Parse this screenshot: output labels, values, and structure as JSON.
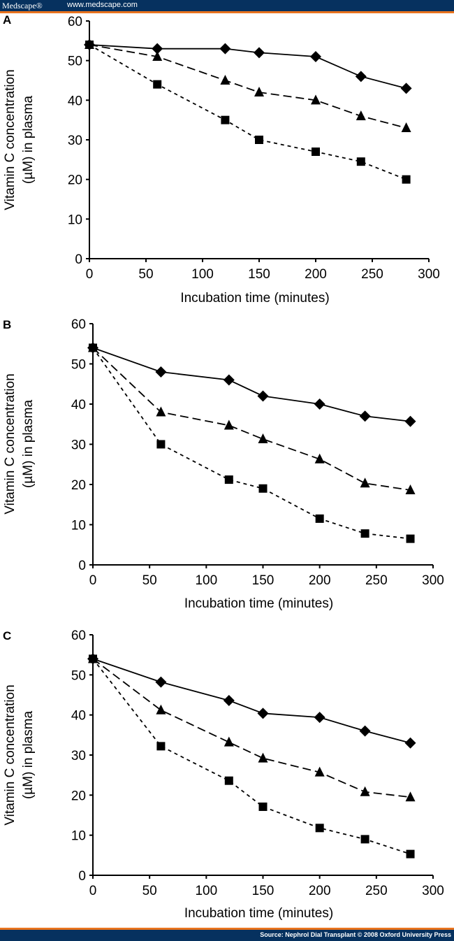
{
  "header": {
    "brand": "Medscape®",
    "url": "www.medscape.com"
  },
  "footer": {
    "source": "Source: Nephrol Dial Transplant © 2008 Oxford University Press"
  },
  "colors": {
    "header_bg": "#06315f",
    "accent": "#e8731e",
    "marks": "#000000"
  },
  "chart_data": [
    {
      "type": "line",
      "panel_label": "A",
      "xlabel": "Incubation time (minutes)",
      "ylabel": [
        "Vitamin C concentration",
        "(µM) in plasma"
      ],
      "xlim": [
        0,
        300
      ],
      "ylim": [
        0,
        60
      ],
      "xticks": [
        0,
        50,
        100,
        150,
        200,
        250,
        300
      ],
      "yticks": [
        0,
        10,
        20,
        30,
        40,
        50,
        60
      ],
      "grid": false,
      "x": [
        0,
        60,
        120,
        150,
        200,
        240,
        280
      ],
      "series": [
        {
          "marker": "diamond",
          "line": "solid",
          "values": [
            54,
            53,
            53,
            52,
            51,
            46,
            43
          ]
        },
        {
          "marker": "triangle",
          "line": "long-dash",
          "values": [
            54,
            51,
            45,
            42,
            40,
            36,
            33
          ]
        },
        {
          "marker": "square",
          "line": "short-dash",
          "values": [
            54,
            44,
            35,
            30,
            27,
            24.5,
            20
          ]
        }
      ]
    },
    {
      "type": "line",
      "panel_label": "B",
      "xlabel": "Incubation time (minutes)",
      "ylabel": [
        "Vitamin C concentration",
        "(µM) in plasma"
      ],
      "xlim": [
        0,
        300
      ],
      "ylim": [
        0,
        60
      ],
      "xticks": [
        0,
        50,
        100,
        150,
        200,
        250,
        300
      ],
      "yticks": [
        0,
        10,
        20,
        30,
        40,
        50,
        60
      ],
      "grid": false,
      "x": [
        0,
        60,
        120,
        150,
        200,
        240,
        280
      ],
      "series": [
        {
          "marker": "diamond",
          "line": "solid",
          "values": [
            54,
            48,
            46,
            42,
            40,
            37,
            35.7
          ]
        },
        {
          "marker": "triangle",
          "line": "long-dash",
          "values": [
            54,
            38,
            34.7,
            31.3,
            26.3,
            20.3,
            18.6
          ]
        },
        {
          "marker": "square",
          "line": "short-dash",
          "values": [
            54,
            30,
            21.2,
            19,
            11.5,
            7.8,
            6.5
          ]
        }
      ]
    },
    {
      "type": "line",
      "panel_label": "C",
      "xlabel": "Incubation time (minutes)",
      "ylabel": [
        "Vitamin C concentration",
        "(µM) in plasma"
      ],
      "xlim": [
        0,
        300
      ],
      "ylim": [
        0,
        60
      ],
      "xticks": [
        0,
        50,
        100,
        150,
        200,
        250,
        300
      ],
      "yticks": [
        0,
        10,
        20,
        30,
        40,
        50,
        60
      ],
      "grid": false,
      "x": [
        0,
        60,
        120,
        150,
        200,
        240,
        280
      ],
      "series": [
        {
          "marker": "diamond",
          "line": "solid",
          "values": [
            54,
            48.2,
            43.6,
            40.4,
            39.4,
            36,
            33
          ]
        },
        {
          "marker": "triangle",
          "line": "long-dash",
          "values": [
            54,
            41.2,
            33.2,
            29.2,
            25.7,
            20.8,
            19.5
          ]
        },
        {
          "marker": "square",
          "line": "short-dash",
          "values": [
            54,
            32.2,
            23.6,
            17.1,
            11.8,
            9,
            5.3
          ]
        }
      ]
    }
  ]
}
